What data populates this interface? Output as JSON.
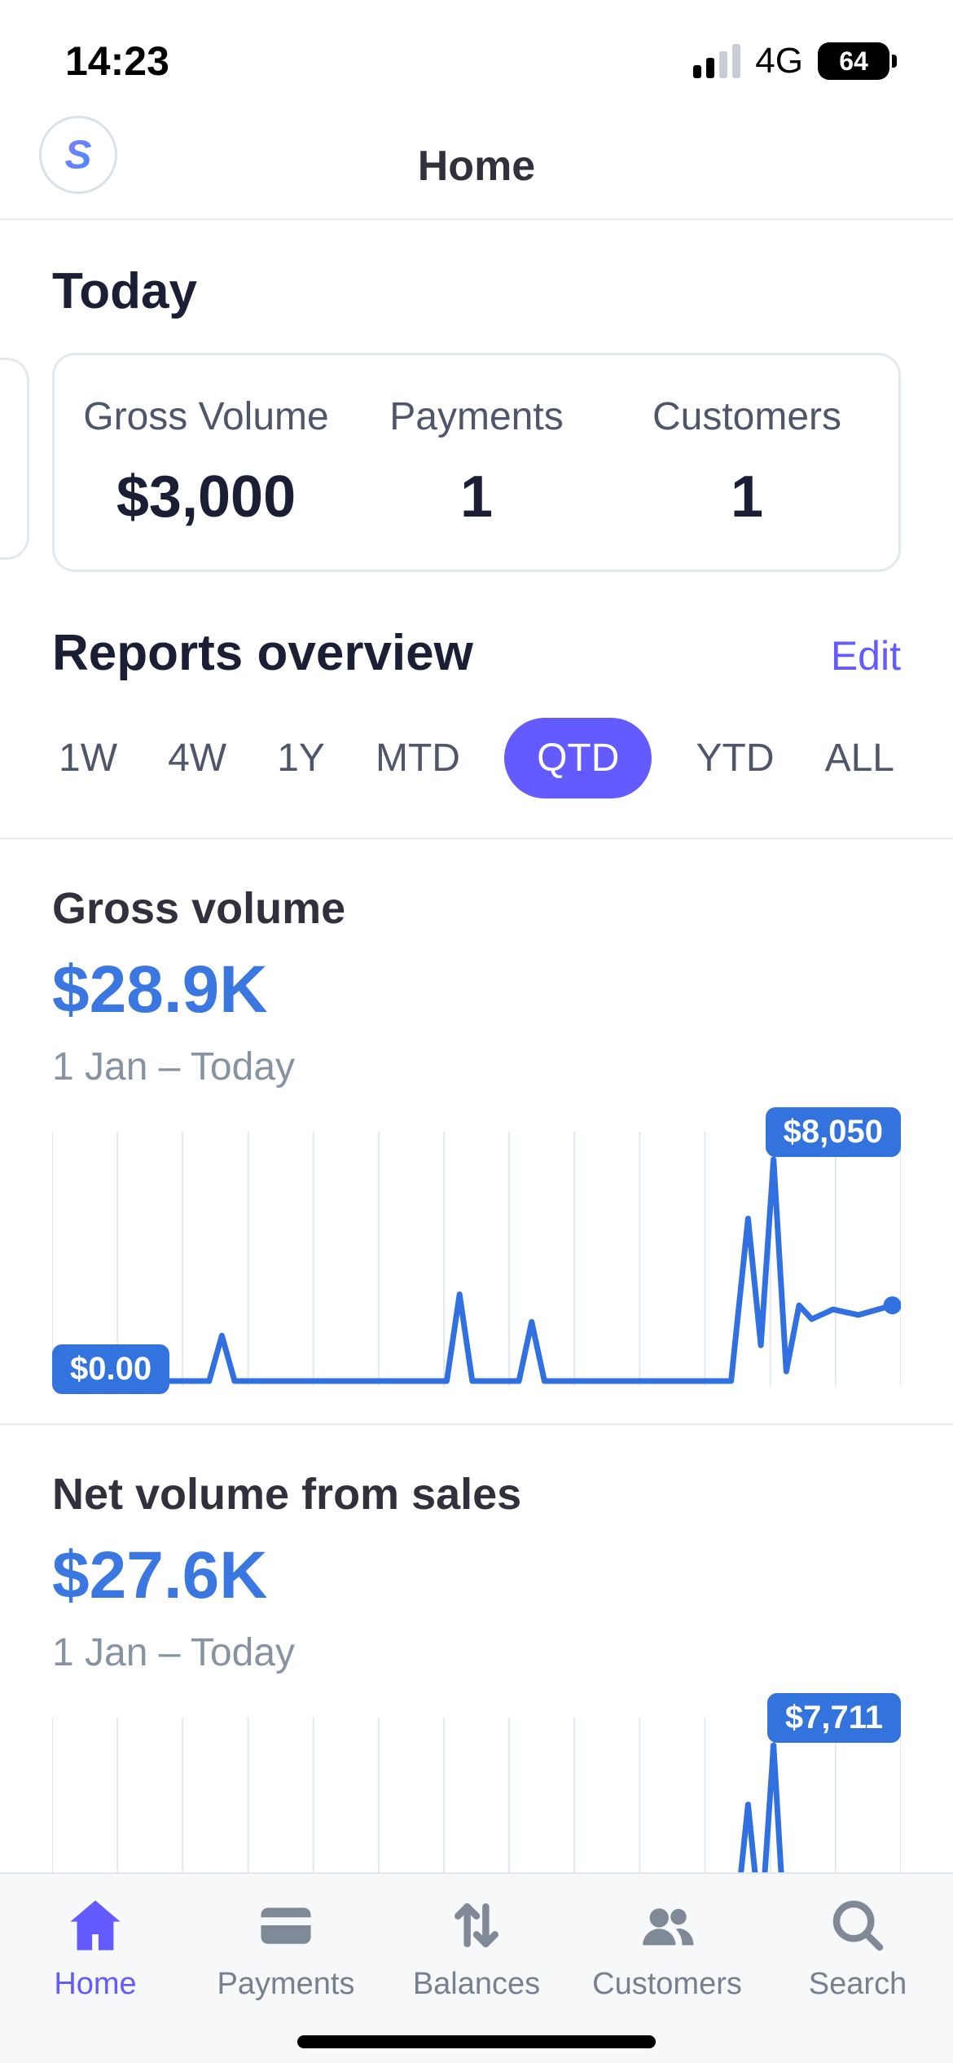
{
  "status_bar": {
    "time": "14:23",
    "network": "4G",
    "battery": "64"
  },
  "header": {
    "title": "Home",
    "logo_letter": "S"
  },
  "today": {
    "heading": "Today",
    "stats": [
      {
        "label": "Gross Volume",
        "value": "$3,000"
      },
      {
        "label": "Payments",
        "value": "1"
      },
      {
        "label": "Customers",
        "value": "1"
      }
    ]
  },
  "reports": {
    "heading": "Reports overview",
    "edit_label": "Edit",
    "ranges": [
      "1W",
      "4W",
      "1Y",
      "MTD",
      "QTD",
      "YTD",
      "ALL"
    ],
    "selected_range": "QTD"
  },
  "chart_data": [
    {
      "type": "line",
      "title": "Gross volume",
      "total": "$28.9K",
      "date_range": "1 Jan – Today",
      "max_label": "$8,050",
      "min_label": "$0.00",
      "ylim": [
        0,
        8050
      ],
      "gridlines": 13,
      "points": [
        [
          0,
          0
        ],
        [
          18.5,
          0
        ],
        [
          20,
          1650
        ],
        [
          21.5,
          0
        ],
        [
          46.5,
          0
        ],
        [
          48,
          3150
        ],
        [
          49.5,
          0
        ],
        [
          55,
          0
        ],
        [
          56.5,
          2150
        ],
        [
          58,
          0
        ],
        [
          80,
          0
        ],
        [
          82,
          5900
        ],
        [
          83.5,
          1300
        ],
        [
          85,
          8050
        ],
        [
          86.5,
          350
        ],
        [
          88,
          2750
        ],
        [
          89.5,
          2250
        ],
        [
          92,
          2600
        ],
        [
          95,
          2400
        ],
        [
          99,
          2750
        ]
      ]
    },
    {
      "type": "line",
      "title": "Net volume from sales",
      "total": "$27.6K",
      "date_range": "1 Jan – Today",
      "max_label": "$7,711",
      "min_label": "$0.00",
      "ylim": [
        0,
        7711
      ],
      "gridlines": 13,
      "points": [
        [
          0,
          0
        ],
        [
          18.5,
          0
        ],
        [
          20,
          1550
        ],
        [
          21.5,
          0
        ],
        [
          46.5,
          0
        ],
        [
          48,
          3000
        ],
        [
          49.5,
          0
        ],
        [
          55,
          0
        ],
        [
          56.5,
          2050
        ],
        [
          58,
          0
        ],
        [
          80,
          0
        ],
        [
          82,
          5650
        ],
        [
          83.5,
          1250
        ],
        [
          85,
          7711
        ],
        [
          86.5,
          300
        ],
        [
          88,
          2650
        ],
        [
          89.5,
          2150
        ],
        [
          92,
          2500
        ],
        [
          95,
          2300
        ],
        [
          99,
          2650
        ]
      ]
    }
  ],
  "tab_bar": {
    "items": [
      {
        "label": "Home",
        "icon": "home-icon",
        "active": true
      },
      {
        "label": "Payments",
        "icon": "payments-card-icon",
        "active": false
      },
      {
        "label": "Balances",
        "icon": "balances-arrows-icon",
        "active": false
      },
      {
        "label": "Customers",
        "icon": "customers-people-icon",
        "active": false
      },
      {
        "label": "Search",
        "icon": "search-icon",
        "active": false
      }
    ]
  },
  "colors": {
    "accent": "#635BFF",
    "chart-line": "#3170E0",
    "badge-bg": "#3273DE",
    "amount-blue": "#3B77E0",
    "grid": "#E3E8EE"
  }
}
